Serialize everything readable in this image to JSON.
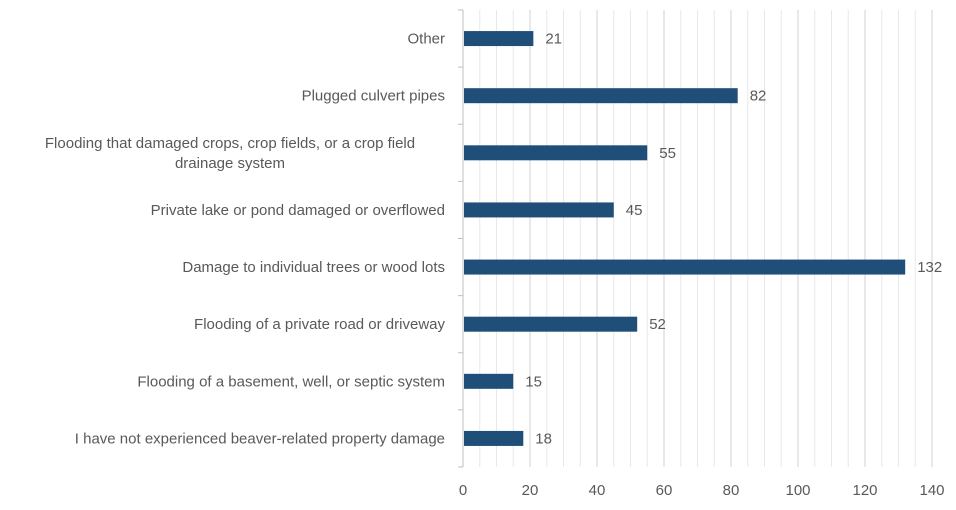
{
  "chart_data": {
    "type": "bar",
    "orientation": "horizontal",
    "categories": [
      "Other",
      "Plugged culvert pipes",
      "Flooding that damaged crops, crop fields, or a crop field drainage system",
      "Private lake or pond damaged or overflowed",
      "Damage to individual trees or wood lots",
      "Flooding of a private road or driveway",
      "Flooding of a basement, well, or septic system",
      "I have not experienced beaver-related property damage"
    ],
    "category_lines": [
      [
        "Other"
      ],
      [
        "Plugged culvert pipes"
      ],
      [
        "Flooding that damaged crops, crop fields, or a crop field",
        "drainage system"
      ],
      [
        "Private lake or pond damaged or overflowed"
      ],
      [
        "Damage to individual trees or wood lots"
      ],
      [
        "Flooding of a private road or driveway"
      ],
      [
        "Flooding of a basement, well, or septic system"
      ],
      [
        "I have not experienced beaver-related property damage"
      ]
    ],
    "values": [
      21,
      82,
      55,
      45,
      132,
      52,
      15,
      18
    ],
    "xlim": [
      0,
      140
    ],
    "x_ticks": [
      0,
      20,
      40,
      60,
      80,
      100,
      120,
      140
    ],
    "title": "",
    "xlabel": "",
    "ylabel": "",
    "bar_color": "#1f4e79",
    "grid": true,
    "minor_grid": true,
    "data_labels": true
  }
}
